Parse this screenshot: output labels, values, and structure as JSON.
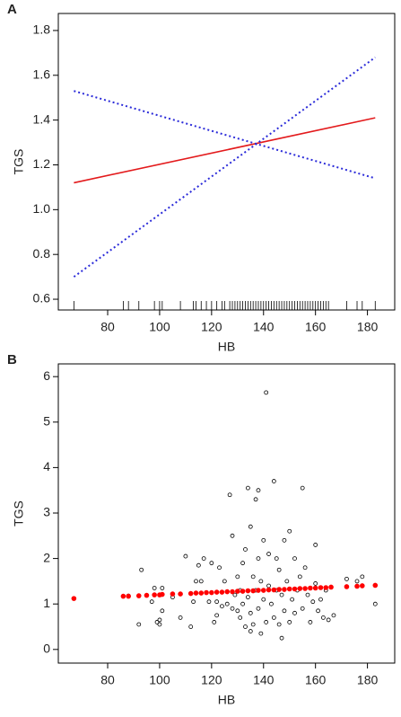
{
  "chart_data": [
    {
      "type": "line",
      "panel_label": "A",
      "x_label": "HB",
      "y_label": "TGS",
      "xlim": [
        61,
        190.5
      ],
      "ylim": [
        0.552,
        1.876
      ],
      "xticks": [
        80,
        100,
        120,
        140,
        160,
        180
      ],
      "yticks": [
        0.6,
        0.8,
        {
          "value": 1,
          "label": "1.0"
        },
        1.2,
        1.4,
        1.6,
        1.8
      ],
      "series": [
        {
          "color": "#e31a1c",
          "linestyle": "solid",
          "x": [
            67,
            183
          ],
          "values": [
            1.12,
            1.41
          ]
        },
        {
          "color": "#2b2bd9",
          "linestyle": "dotted",
          "x": [
            67,
            183
          ],
          "values": [
            1.53,
            1.14
          ]
        },
        {
          "color": "#2b2bd9",
          "linestyle": "dotted",
          "x": [
            67,
            183
          ],
          "values": [
            0.7,
            1.68
          ]
        }
      ],
      "rug": [
        67,
        86,
        88,
        92,
        98,
        100,
        101,
        108,
        113,
        114,
        116,
        118,
        120,
        122,
        124,
        125,
        127,
        128,
        129,
        130,
        131,
        132,
        133,
        134,
        135,
        136,
        137,
        138,
        139,
        140,
        141,
        142,
        143,
        144,
        145,
        146,
        147,
        148,
        149,
        150,
        151,
        152,
        153,
        154,
        155,
        156,
        157,
        158,
        159,
        160,
        161,
        162,
        163,
        164,
        165,
        172,
        176,
        178,
        183
      ]
    },
    {
      "type": "scatter",
      "panel_label": "B",
      "x_label": "HB",
      "y_label": "TGS",
      "xlim": [
        61,
        190.5
      ],
      "ylim": [
        -0.3,
        6.28
      ],
      "xticks": [
        80,
        100,
        120,
        140,
        160,
        180
      ],
      "yticks": [
        0,
        1,
        2,
        3,
        4,
        5,
        6
      ],
      "series": [
        {
          "color": "#000000",
          "marker": "open",
          "x": [
            67,
            86,
            88,
            92,
            93,
            97,
            98,
            99,
            100,
            100,
            101,
            101,
            105,
            108,
            110,
            112,
            113,
            114,
            115,
            116,
            117,
            118,
            119,
            120,
            121,
            122,
            122,
            123,
            124,
            125,
            126,
            127,
            128,
            128,
            129,
            130,
            130,
            131,
            131,
            132,
            132,
            133,
            133,
            134,
            134,
            135,
            135,
            135,
            136,
            136,
            137,
            137,
            138,
            138,
            138,
            139,
            139,
            140,
            140,
            141,
            141,
            142,
            142,
            143,
            144,
            144,
            145,
            145,
            146,
            146,
            147,
            147,
            148,
            148,
            149,
            150,
            150,
            151,
            152,
            152,
            153,
            154,
            155,
            155,
            156,
            157,
            158,
            159,
            160,
            160,
            161,
            162,
            163,
            164,
            165,
            167,
            172,
            176,
            178,
            183
          ],
          "values": [
            1.12,
            1.17,
            1.18,
            0.55,
            1.75,
            1.05,
            1.35,
            0.6,
            0.55,
            0.65,
            1.35,
            0.85,
            1.15,
            0.7,
            2.05,
            0.5,
            1.05,
            1.5,
            1.85,
            1.5,
            2.0,
            1.25,
            1.05,
            1.9,
            0.6,
            1.05,
            0.75,
            1.8,
            0.95,
            1.5,
            1.0,
            3.4,
            2.5,
            0.9,
            1.2,
            1.6,
            0.85,
            0.7,
            1.3,
            1.9,
            1.0,
            0.5,
            2.2,
            3.55,
            1.15,
            0.4,
            0.8,
            2.7,
            1.6,
            0.55,
            3.3,
            1.3,
            3.5,
            2.0,
            0.9,
            1.5,
            0.35,
            2.4,
            1.1,
            5.65,
            0.6,
            2.1,
            1.4,
            1.0,
            3.7,
            0.7,
            1.3,
            2.0,
            0.55,
            1.75,
            0.25,
            1.2,
            0.85,
            2.4,
            1.5,
            0.6,
            2.6,
            1.1,
            2.0,
            0.8,
            1.3,
            1.6,
            3.55,
            0.9,
            1.8,
            1.2,
            0.6,
            1.05,
            2.3,
            1.45,
            0.85,
            1.1,
            0.7,
            1.3,
            0.65,
            0.75,
            1.55,
            1.5,
            1.6,
            1.0
          ]
        },
        {
          "color": "#ff0000",
          "marker": "filled",
          "x": [
            67,
            86,
            88,
            92,
            95,
            98,
            100,
            101,
            105,
            108,
            112,
            114,
            116,
            118,
            120,
            122,
            124,
            126,
            128,
            130,
            132,
            134,
            136,
            138,
            140,
            142,
            144,
            146,
            148,
            150,
            152,
            154,
            156,
            158,
            160,
            162,
            164,
            166,
            172,
            176,
            178,
            183
          ],
          "values": [
            1.12,
            1.17,
            1.17,
            1.18,
            1.19,
            1.2,
            1.2,
            1.21,
            1.22,
            1.22,
            1.23,
            1.24,
            1.24,
            1.25,
            1.25,
            1.26,
            1.26,
            1.27,
            1.27,
            1.28,
            1.28,
            1.29,
            1.29,
            1.3,
            1.3,
            1.31,
            1.31,
            1.32,
            1.32,
            1.33,
            1.33,
            1.34,
            1.34,
            1.35,
            1.35,
            1.36,
            1.36,
            1.37,
            1.38,
            1.39,
            1.4,
            1.41
          ]
        }
      ]
    }
  ]
}
